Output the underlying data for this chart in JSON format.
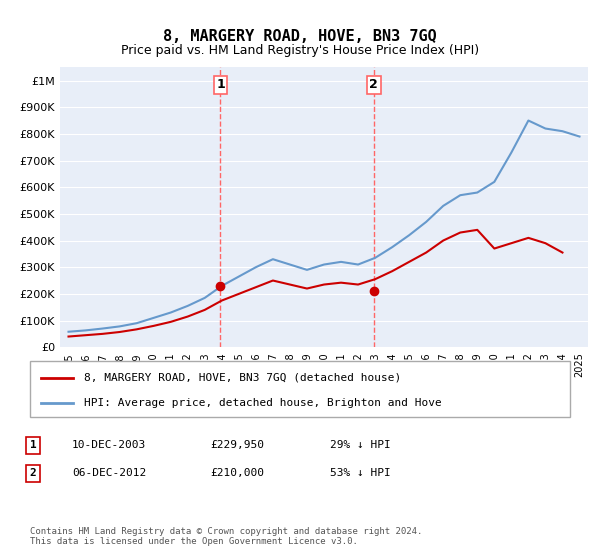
{
  "title": "8, MARGERY ROAD, HOVE, BN3 7GQ",
  "subtitle": "Price paid vs. HM Land Registry's House Price Index (HPI)",
  "hpi_years": [
    1995,
    1996,
    1997,
    1998,
    1999,
    2000,
    2001,
    2002,
    2003,
    2004,
    2005,
    2006,
    2007,
    2008,
    2009,
    2010,
    2011,
    2012,
    2013,
    2014,
    2015,
    2016,
    2017,
    2018,
    2019,
    2020,
    2021,
    2022,
    2023,
    2024,
    2025
  ],
  "hpi_values": [
    58000,
    63000,
    70000,
    78000,
    90000,
    110000,
    130000,
    155000,
    185000,
    230000,
    265000,
    300000,
    330000,
    310000,
    290000,
    310000,
    320000,
    310000,
    335000,
    375000,
    420000,
    470000,
    530000,
    570000,
    580000,
    620000,
    730000,
    850000,
    820000,
    810000,
    790000
  ],
  "price_years": [
    1995,
    1996,
    1997,
    1998,
    1999,
    2000,
    2001,
    2002,
    2003,
    2004,
    2005,
    2006,
    2007,
    2008,
    2009,
    2010,
    2011,
    2012,
    2013,
    2014,
    2015,
    2016,
    2017,
    2018,
    2019,
    2020,
    2021,
    2022,
    2023,
    2024
  ],
  "price_values": [
    40000,
    45000,
    50000,
    57000,
    67000,
    80000,
    95000,
    115000,
    140000,
    175000,
    200000,
    225000,
    250000,
    235000,
    220000,
    235000,
    242000,
    235000,
    255000,
    285000,
    320000,
    355000,
    400000,
    430000,
    440000,
    370000,
    390000,
    410000,
    390000,
    355000
  ],
  "transaction1_year": 2003.92,
  "transaction1_value": 229950,
  "transaction2_year": 2012.92,
  "transaction2_value": 210000,
  "hpi_color": "#6699cc",
  "price_color": "#cc0000",
  "vline_color": "#ff6666",
  "dot_color": "#cc0000",
  "legend_label_price": "8, MARGERY ROAD, HOVE, BN3 7GQ (detached house)",
  "legend_label_hpi": "HPI: Average price, detached house, Brighton and Hove",
  "table_entries": [
    {
      "num": "1",
      "date": "10-DEC-2003",
      "price": "£229,950",
      "pct": "29% ↓ HPI"
    },
    {
      "num": "2",
      "date": "06-DEC-2012",
      "price": "£210,000",
      "pct": "53% ↓ HPI"
    }
  ],
  "footnote": "Contains HM Land Registry data © Crown copyright and database right 2024.\nThis data is licensed under the Open Government Licence v3.0.",
  "ylim": [
    0,
    1050000
  ],
  "yticks": [
    0,
    100000,
    200000,
    300000,
    400000,
    500000,
    600000,
    700000,
    800000,
    900000,
    1000000
  ],
  "ytick_labels": [
    "£0",
    "£100K",
    "£200K",
    "£300K",
    "£400K",
    "£500K",
    "£600K",
    "£700K",
    "£800K",
    "£900K",
    "£1M"
  ],
  "xlim_start": 1994.5,
  "xlim_end": 2025.5,
  "xtick_years": [
    1995,
    1996,
    1997,
    1998,
    1999,
    2000,
    2001,
    2002,
    2003,
    2004,
    2005,
    2006,
    2007,
    2008,
    2009,
    2010,
    2011,
    2012,
    2013,
    2014,
    2015,
    2016,
    2017,
    2018,
    2019,
    2020,
    2021,
    2022,
    2023,
    2024,
    2025
  ],
  "bg_color": "#f0f4fa",
  "plot_bg": "#e8eef8"
}
